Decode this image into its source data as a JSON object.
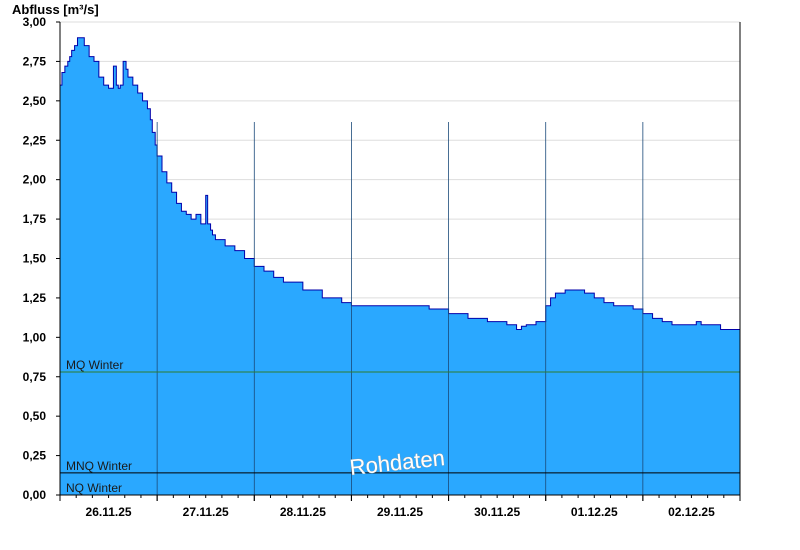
{
  "chart_data": {
    "type": "area",
    "ylabel": "Abfluss [m³/s]",
    "ylim": [
      0,
      3.0
    ],
    "xlim": [
      0,
      7
    ],
    "y_ticks": [
      0,
      0.25,
      0.5,
      0.75,
      1.0,
      1.25,
      1.5,
      1.75,
      2.0,
      2.25,
      2.5,
      2.75,
      3.0
    ],
    "y_tick_labels": [
      "0,00",
      "0,25",
      "0,50",
      "0,75",
      "1,00",
      "1,25",
      "1,50",
      "1,75",
      "2,00",
      "2,25",
      "2,50",
      "2,75",
      "3,00"
    ],
    "x_tick_labels": [
      "26.11.25",
      "27.11.25",
      "28.11.25",
      "29.11.25",
      "30.11.25",
      "01.12.25",
      "02.12.25"
    ],
    "grid": true,
    "fill_color": "#2aa8ff",
    "line_color": "#0000aa",
    "series": [
      {
        "x": [
          0.0,
          0.02,
          0.05,
          0.08,
          0.1,
          0.12,
          0.15,
          0.18,
          0.2,
          0.25,
          0.3,
          0.35,
          0.4,
          0.45,
          0.5,
          0.55,
          0.58,
          0.6,
          0.62,
          0.65,
          0.68,
          0.7,
          0.75,
          0.8,
          0.85,
          0.9,
          0.93,
          0.95,
          0.98,
          1.0,
          1.05,
          1.1,
          1.15,
          1.2,
          1.25,
          1.3,
          1.35,
          1.4,
          1.45,
          1.5,
          1.52,
          1.55,
          1.57,
          1.6,
          1.7,
          1.8,
          1.9,
          2.0,
          2.1,
          2.2,
          2.3,
          2.5,
          2.7,
          2.9,
          3.0,
          3.2,
          3.5,
          3.8,
          4.0,
          4.2,
          4.4,
          4.6,
          4.7,
          4.75,
          4.8,
          4.9,
          5.0,
          5.05,
          5.1,
          5.2,
          5.3,
          5.4,
          5.5,
          5.6,
          5.7,
          5.8,
          5.9,
          6.0,
          6.1,
          6.2,
          6.3,
          6.5,
          6.55,
          6.6,
          6.7,
          6.8,
          7.0
        ],
        "y": [
          2.6,
          2.68,
          2.72,
          2.75,
          2.78,
          2.82,
          2.85,
          2.9,
          2.9,
          2.85,
          2.78,
          2.75,
          2.65,
          2.6,
          2.58,
          2.72,
          2.6,
          2.58,
          2.6,
          2.75,
          2.7,
          2.65,
          2.6,
          2.55,
          2.5,
          2.45,
          2.38,
          2.3,
          2.22,
          2.15,
          2.05,
          1.98,
          1.92,
          1.85,
          1.8,
          1.78,
          1.75,
          1.78,
          1.72,
          1.9,
          1.72,
          1.68,
          1.65,
          1.62,
          1.58,
          1.55,
          1.5,
          1.45,
          1.42,
          1.38,
          1.35,
          1.3,
          1.25,
          1.22,
          1.2,
          1.2,
          1.2,
          1.18,
          1.15,
          1.12,
          1.1,
          1.08,
          1.05,
          1.07,
          1.08,
          1.1,
          1.2,
          1.25,
          1.28,
          1.3,
          1.3,
          1.28,
          1.25,
          1.22,
          1.2,
          1.2,
          1.18,
          1.15,
          1.12,
          1.1,
          1.08,
          1.08,
          1.1,
          1.08,
          1.08,
          1.05,
          1.04
        ]
      }
    ],
    "reference_lines": [
      {
        "label": "MQ Winter",
        "value": 0.78,
        "color": "#2f7d2f"
      },
      {
        "label": "MNQ Winter",
        "value": 0.14,
        "color": "#000000"
      },
      {
        "label": "NQ Winter",
        "value": 0.0,
        "color": "#000000"
      }
    ],
    "watermark": "Rohdaten"
  }
}
